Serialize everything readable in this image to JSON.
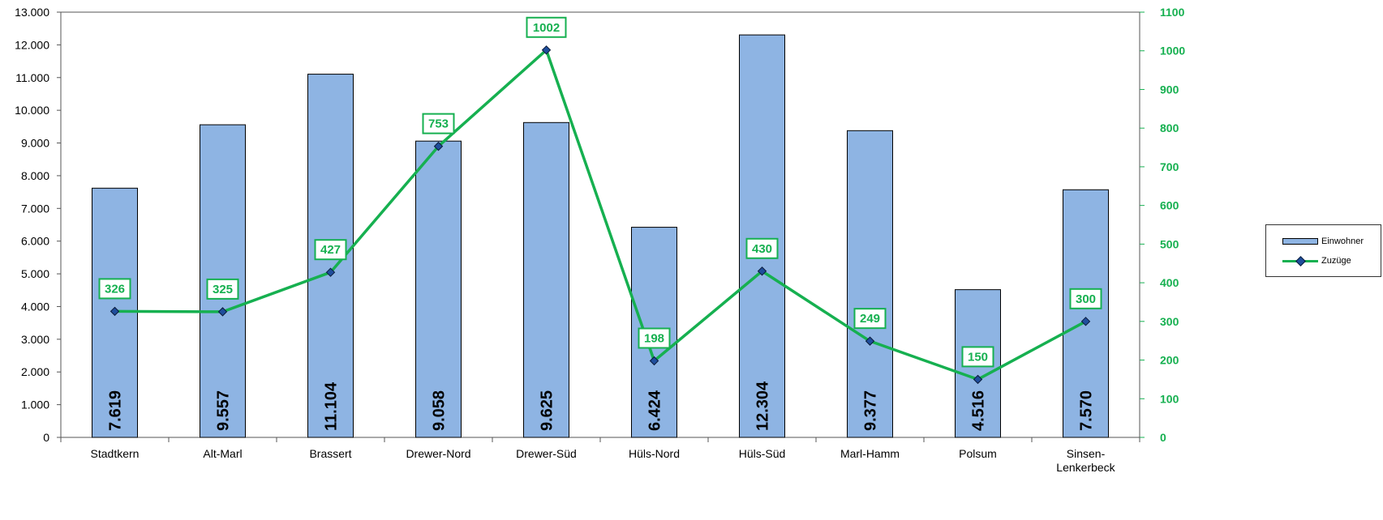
{
  "chart_data": {
    "type": "bar+line",
    "categories": [
      "Stadtkern",
      "Alt-Marl",
      "Brassert",
      "Drewer-Nord",
      "Drewer-Süd",
      "Hüls-Nord",
      "Hüls-Süd",
      "Marl-Hamm",
      "Polsum",
      "Sinsen-Lenkerbeck"
    ],
    "category_label_lines": [
      [
        "Stadtkern"
      ],
      [
        "Alt-Marl"
      ],
      [
        "Brassert"
      ],
      [
        "Drewer-Nord"
      ],
      [
        "Drewer-Süd"
      ],
      [
        "Hüls-Nord"
      ],
      [
        "Hüls-Süd"
      ],
      [
        "Marl-Hamm"
      ],
      [
        "Polsum"
      ],
      [
        "Sinsen-",
        "Lenkerbeck"
      ]
    ],
    "series": [
      {
        "name": "Einwohner",
        "type": "bar",
        "axis": "left",
        "values": [
          7619,
          9557,
          11104,
          9058,
          9625,
          6424,
          12304,
          9377,
          4516,
          7570
        ],
        "labels": [
          "7.619",
          "9.557",
          "11.104",
          "9.058",
          "9.625",
          "6.424",
          "12.304",
          "9.377",
          "4.516",
          "7.570"
        ],
        "color": "#8eb4e3"
      },
      {
        "name": "Zuzüge",
        "type": "line",
        "axis": "right",
        "values": [
          326,
          325,
          427,
          753,
          1002,
          198,
          430,
          249,
          150,
          300
        ],
        "labels": [
          "326",
          "325",
          "427",
          "753",
          "1002",
          "198",
          "430",
          "249",
          "150",
          "300"
        ],
        "color": "#16b050",
        "marker_color": "#1f4e9c"
      }
    ],
    "y_left": {
      "range": [
        0,
        13000
      ],
      "ticks": [
        0,
        1000,
        2000,
        3000,
        4000,
        5000,
        6000,
        7000,
        8000,
        9000,
        10000,
        11000,
        12000,
        13000
      ],
      "tick_labels": [
        "0",
        "1.000",
        "2.000",
        "3.000",
        "4.000",
        "5.000",
        "6.000",
        "7.000",
        "8.000",
        "9.000",
        "10.000",
        "11.000",
        "12.000",
        "13.000"
      ]
    },
    "y_right": {
      "range": [
        0,
        1100
      ],
      "ticks": [
        0,
        100,
        200,
        300,
        400,
        500,
        600,
        700,
        800,
        900,
        1000,
        1100
      ],
      "tick_labels": [
        "0",
        "100",
        "200",
        "300",
        "400",
        "500",
        "600",
        "700",
        "800",
        "900",
        "1000",
        "1100"
      ],
      "color": "#16b050"
    },
    "grid": false,
    "legend": {
      "position": "right",
      "entries": [
        "Einwohner",
        "Zuzüge"
      ]
    }
  }
}
